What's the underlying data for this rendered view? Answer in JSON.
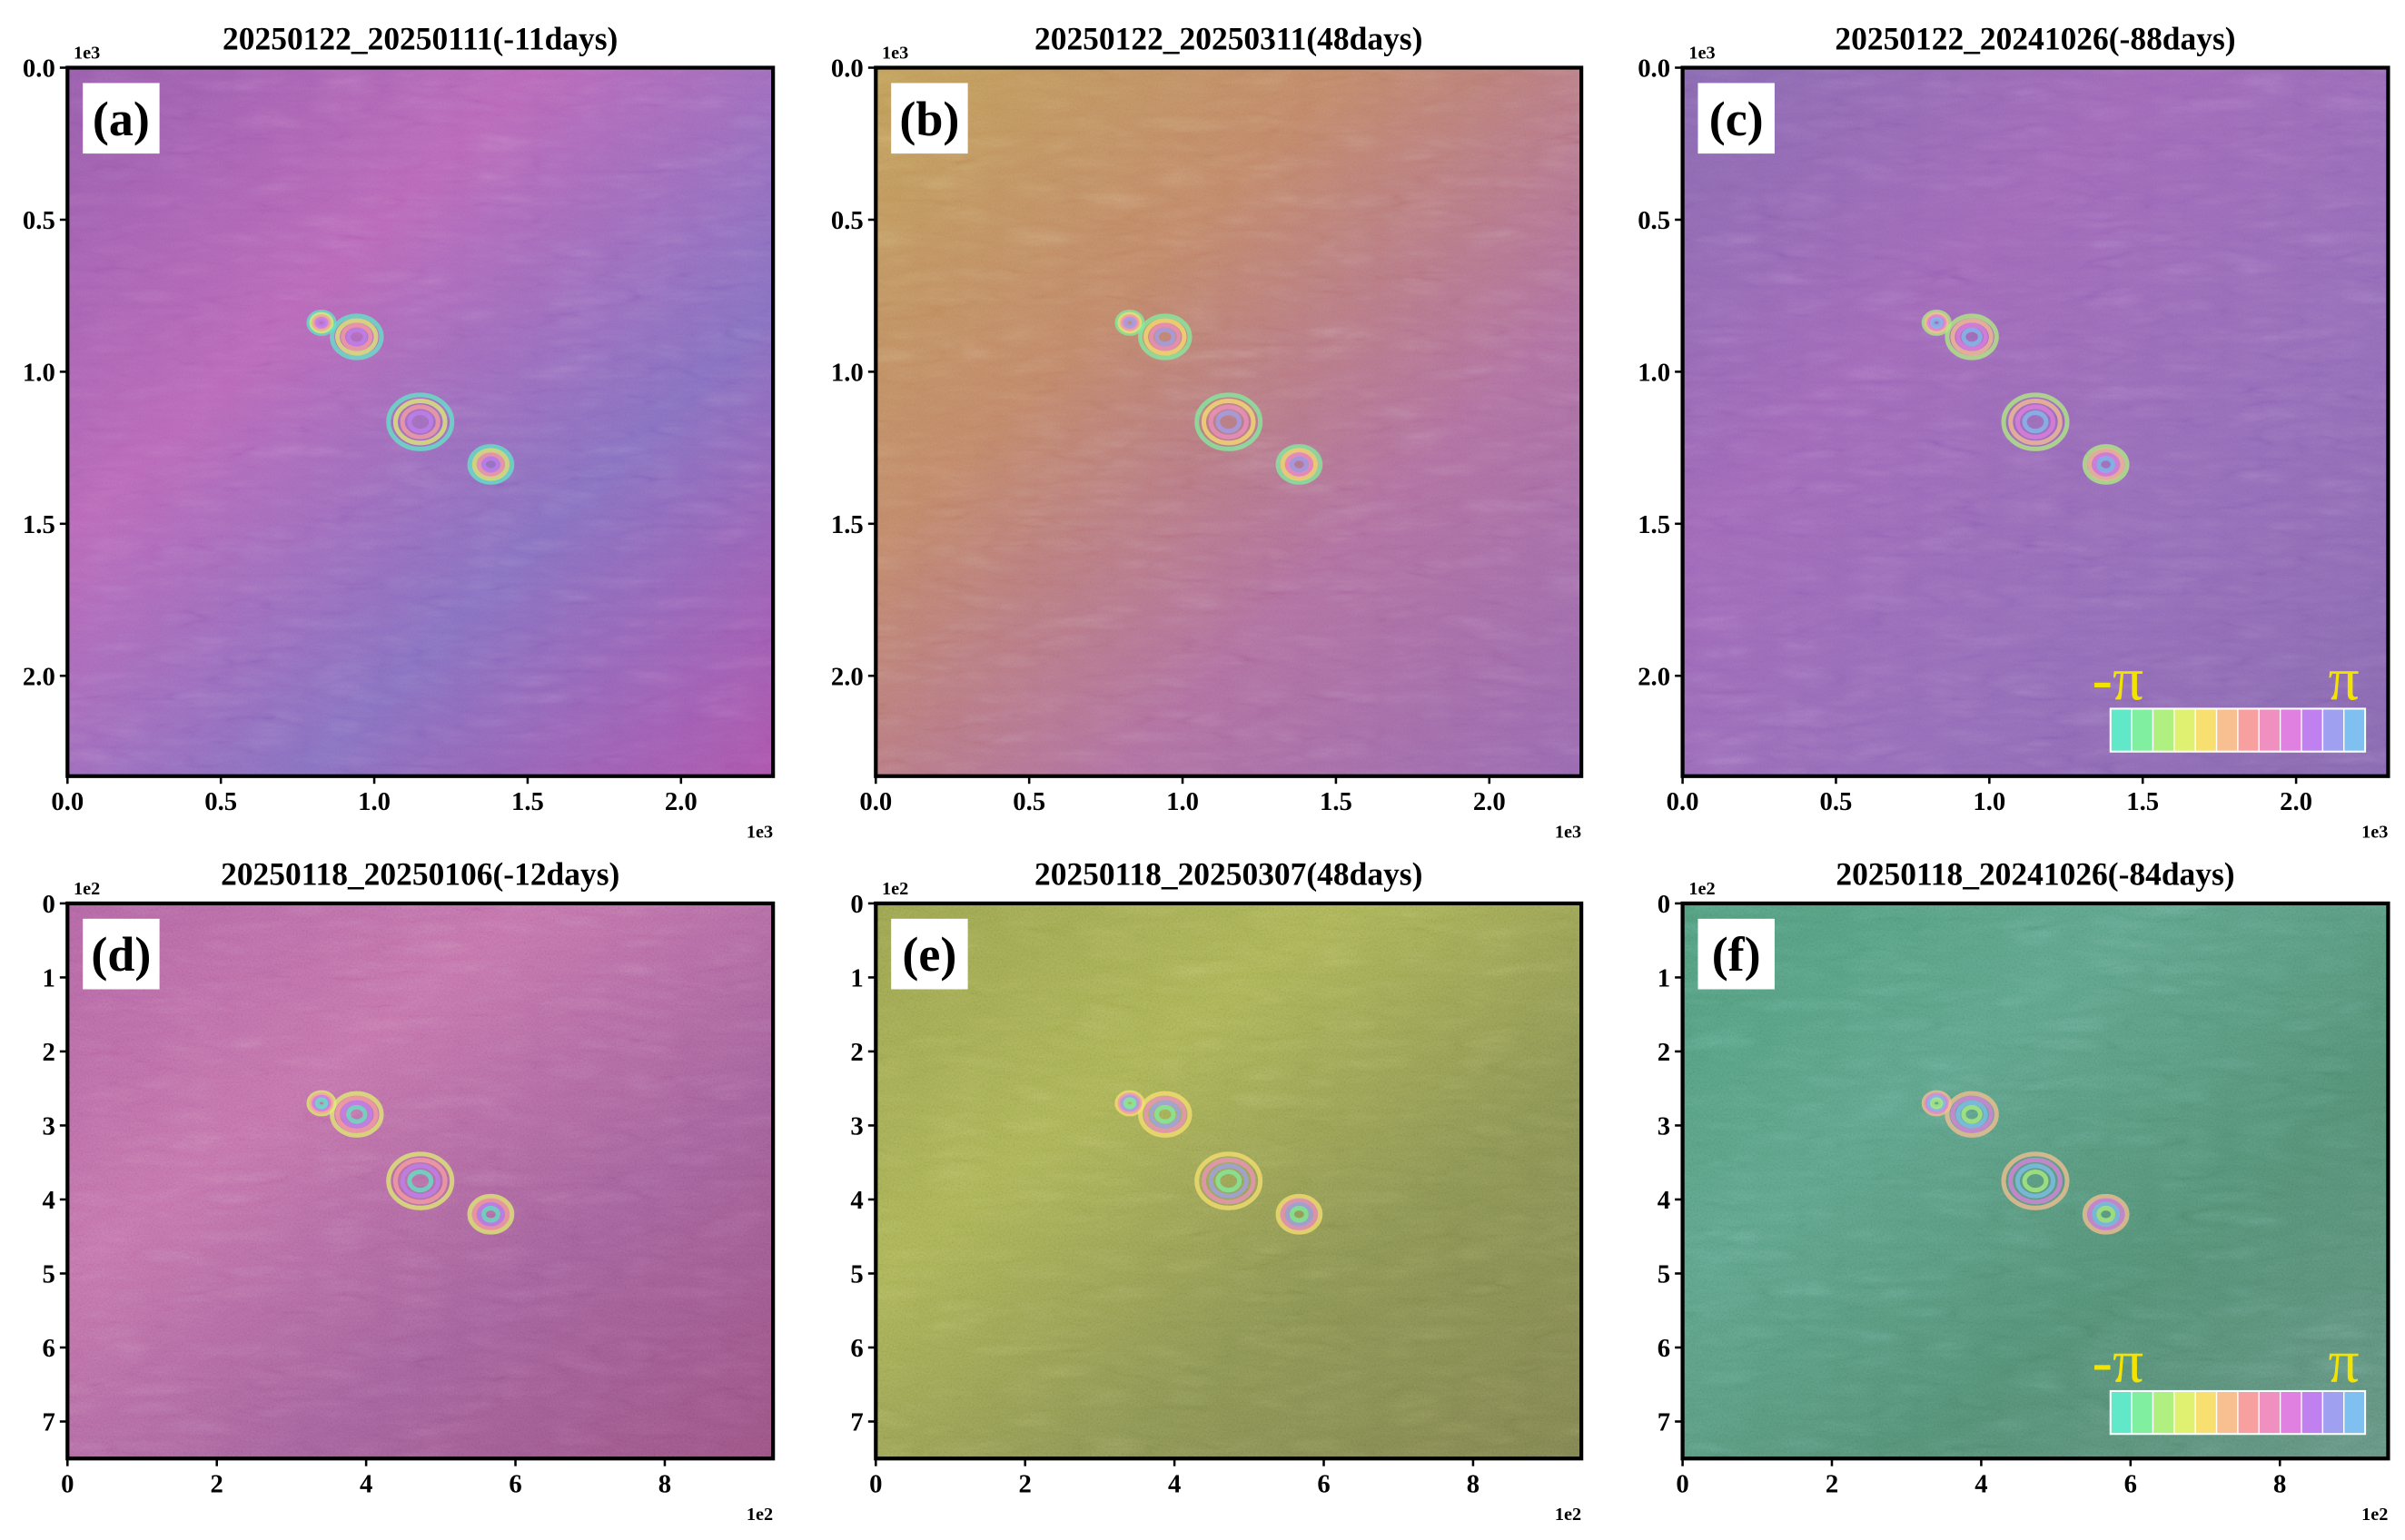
{
  "chart_data": [
    {
      "type": "image",
      "title": "20250122_20250111(-11days)",
      "panel_label": "(a)",
      "x_offset_label": "1e3",
      "y_offset_label": "1e3",
      "xlim": [
        0,
        2.3
      ],
      "ylim": [
        0,
        2.33
      ],
      "yaxis_inverted": true,
      "xticks": [
        {
          "value": 0,
          "label": "0.0"
        },
        {
          "value": 0.5,
          "label": "0.5"
        },
        {
          "value": 1,
          "label": "1.0"
        },
        {
          "value": 1.5,
          "label": "1.5"
        },
        {
          "value": 2,
          "label": "2.0"
        }
      ],
      "yticks": [
        {
          "value": 0,
          "label": "0.0"
        },
        {
          "value": 0.5,
          "label": "0.5"
        },
        {
          "value": 1,
          "label": "1.0"
        },
        {
          "value": 1.5,
          "label": "1.5"
        },
        {
          "value": 2,
          "label": "2.0"
        }
      ]
    },
    {
      "type": "image",
      "title": "20250122_20250311(48days)",
      "panel_label": "(b)",
      "x_offset_label": "1e3",
      "y_offset_label": "1e3",
      "xlim": [
        0,
        2.3
      ],
      "ylim": [
        0,
        2.33
      ],
      "yaxis_inverted": true,
      "xticks": [
        {
          "value": 0,
          "label": "0.0"
        },
        {
          "value": 0.5,
          "label": "0.5"
        },
        {
          "value": 1,
          "label": "1.0"
        },
        {
          "value": 1.5,
          "label": "1.5"
        },
        {
          "value": 2,
          "label": "2.0"
        }
      ],
      "yticks": [
        {
          "value": 0,
          "label": "0.0"
        },
        {
          "value": 0.5,
          "label": "0.5"
        },
        {
          "value": 1,
          "label": "1.0"
        },
        {
          "value": 1.5,
          "label": "1.5"
        },
        {
          "value": 2,
          "label": "2.0"
        }
      ]
    },
    {
      "type": "image",
      "title": "20250122_20241026(-88days)",
      "panel_label": "(c)",
      "x_offset_label": "1e3",
      "y_offset_label": "1e3",
      "xlim": [
        0,
        2.3
      ],
      "ylim": [
        0,
        2.33
      ],
      "yaxis_inverted": true,
      "xticks": [
        {
          "value": 0,
          "label": "0.0"
        },
        {
          "value": 0.5,
          "label": "0.5"
        },
        {
          "value": 1,
          "label": "1.0"
        },
        {
          "value": 1.5,
          "label": "1.5"
        },
        {
          "value": 2,
          "label": "2.0"
        }
      ],
      "yticks": [
        {
          "value": 0,
          "label": "0.0"
        },
        {
          "value": 0.5,
          "label": "0.5"
        },
        {
          "value": 1,
          "label": "1.0"
        },
        {
          "value": 1.5,
          "label": "1.5"
        },
        {
          "value": 2,
          "label": "2.0"
        }
      ],
      "colorbar": {
        "min_label": "-π",
        "max_label": "π"
      }
    },
    {
      "type": "image",
      "title": "20250118_20250106(-12days)",
      "panel_label": "(d)",
      "x_offset_label": "1e2",
      "y_offset_label": "1e2",
      "xlim": [
        0,
        9.45
      ],
      "ylim": [
        0,
        7.5
      ],
      "yaxis_inverted": true,
      "xticks": [
        0,
        2,
        4,
        6,
        8
      ],
      "yticks": [
        0,
        1,
        2,
        3,
        4,
        5,
        6,
        7
      ]
    },
    {
      "type": "image",
      "title": "20250118_20250307(48days)",
      "panel_label": "(e)",
      "x_offset_label": "1e2",
      "y_offset_label": "1e2",
      "xlim": [
        0,
        9.45
      ],
      "ylim": [
        0,
        7.5
      ],
      "yaxis_inverted": true,
      "xticks": [
        0,
        2,
        4,
        6,
        8
      ],
      "yticks": [
        0,
        1,
        2,
        3,
        4,
        5,
        6,
        7
      ]
    },
    {
      "type": "image",
      "title": "20250118_20241026(-84days)",
      "panel_label": "(f)",
      "x_offset_label": "1e2",
      "y_offset_label": "1e2",
      "xlim": [
        0,
        9.45
      ],
      "ylim": [
        0,
        7.5
      ],
      "yaxis_inverted": true,
      "xticks": [
        0,
        2,
        4,
        6,
        8
      ],
      "yticks": [
        0,
        1,
        2,
        3,
        4,
        5,
        6,
        7
      ],
      "colorbar": {
        "min_label": "-π",
        "max_label": "π"
      }
    }
  ]
}
